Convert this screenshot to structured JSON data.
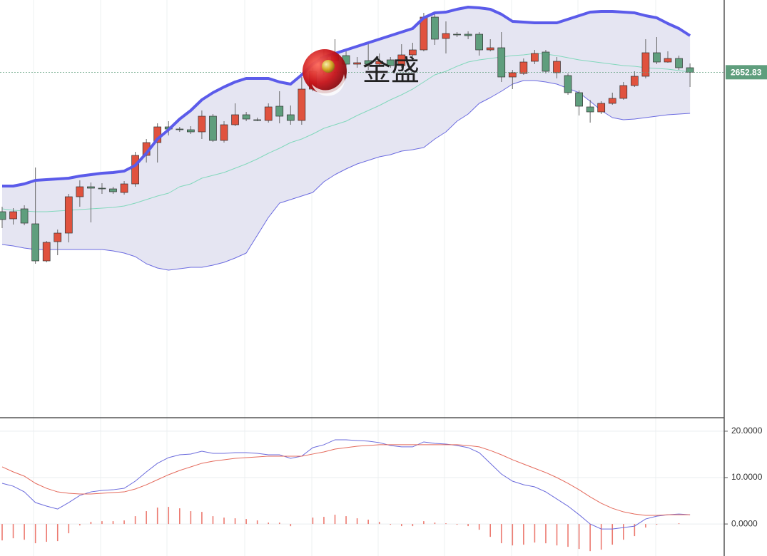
{
  "chart_data": [
    {
      "type": "candlestick",
      "ylim": [
        2411,
        2703.5
      ],
      "open": [
        2555,
        2550,
        2557,
        2546.5,
        2520.5,
        2534,
        2540,
        2565.5,
        2572.5,
        2571.5,
        2571,
        2568.5,
        2574.5,
        2594.5,
        2603.5,
        2614.5,
        2613,
        2612.5,
        2611,
        2622,
        2605,
        2616,
        2623,
        2619.5,
        2619,
        2629,
        2623,
        2619,
        2641,
        2663.5,
        2661,
        2664.5,
        2658.5,
        2661,
        2658.5,
        2661.5,
        2657.5,
        2665,
        2668.5,
        2691.5,
        2676.5,
        2679.5,
        2679.5,
        2679.5,
        2668.5,
        2670,
        2649.5,
        2652,
        2660.5,
        2667,
        2652.5,
        2650.5,
        2638.5,
        2628.5,
        2625,
        2631,
        2634.5,
        2643.5,
        2650,
        2666.5,
        2660,
        2662.5,
        2656
      ],
      "high": [
        2558.5,
        2557.5,
        2559.5,
        2586,
        2534.5,
        2542.5,
        2567.5,
        2577,
        2575.5,
        2575,
        2572.5,
        2576.5,
        2597,
        2606,
        2617,
        2618.5,
        2614.5,
        2615,
        2626,
        2623.5,
        2618.5,
        2631,
        2625,
        2621,
        2631,
        2639.5,
        2629.5,
        2649.5,
        2656,
        2668.5,
        2676,
        2667.5,
        2663.5,
        2673.5,
        2666,
        2663.5,
        2672.5,
        2673.5,
        2694.5,
        2694.5,
        2688.5,
        2681,
        2681.5,
        2681,
        2676,
        2681,
        2654.5,
        2662.5,
        2668.5,
        2668.5,
        2663.5,
        2652,
        2640,
        2633.5,
        2632.5,
        2638.5,
        2646,
        2653.5,
        2676,
        2677.5,
        2667.5,
        2664.5,
        2659
      ],
      "low": [
        2543.5,
        2546,
        2545.5,
        2518.5,
        2519.5,
        2524.5,
        2533.5,
        2558.5,
        2547.5,
        2567.5,
        2567.5,
        2567,
        2572.5,
        2589.5,
        2589.5,
        2608.5,
        2611,
        2609.5,
        2606,
        2604,
        2603.5,
        2615,
        2618.5,
        2618.5,
        2617.5,
        2617,
        2616,
        2616,
        2639.5,
        2651,
        2658.5,
        2648.5,
        2656,
        2654.5,
        2657.5,
        2656,
        2656,
        2663.5,
        2667.5,
        2672,
        2666,
        2677.5,
        2676,
        2664.5,
        2667.5,
        2646,
        2641,
        2651,
        2658.5,
        2652,
        2648.5,
        2637,
        2622.5,
        2617.5,
        2623.5,
        2630,
        2633.5,
        2642.5,
        2648.5,
        2658.5,
        2659.5,
        2654.5,
        2642.5
      ],
      "close": [
        2549.5,
        2555,
        2547,
        2520.5,
        2533.5,
        2540,
        2565.5,
        2572.5,
        2571.5,
        2571,
        2569,
        2574.5,
        2594.5,
        2603.5,
        2614.5,
        2613,
        2612.5,
        2611,
        2622,
        2605,
        2616,
        2623,
        2620,
        2619,
        2628.5,
        2622,
        2619,
        2641,
        2653.5,
        2653.5,
        2665,
        2658.5,
        2659.5,
        2658.5,
        2660.5,
        2657.5,
        2665,
        2668.5,
        2691.5,
        2676,
        2680,
        2679,
        2678.5,
        2668.5,
        2670,
        2649.5,
        2652.5,
        2660,
        2666,
        2653.5,
        2660.5,
        2638.5,
        2629,
        2625,
        2631,
        2634.5,
        2643.5,
        2650,
        2666.5,
        2660,
        2662.5,
        2656,
        2652.83
      ],
      "up_color": "#e0523e",
      "down_color": "#5f9e7d",
      "upper": {
        "color": "#5b5bea",
        "values": [
          2573,
          2573,
          2574.5,
          2577,
          2577.5,
          2578,
          2578.5,
          2580,
          2581,
          2582,
          2582.5,
          2583.5,
          2587.5,
          2596,
          2606,
          2612.5,
          2620,
          2626,
          2633.5,
          2638.5,
          2642.5,
          2646,
          2648.5,
          2648.5,
          2648.5,
          2646,
          2644.5,
          2651,
          2658.5,
          2663.5,
          2666,
          2668.5,
          2671,
          2673.5,
          2676,
          2678.5,
          2681,
          2683.5,
          2691,
          2694.5,
          2695,
          2697,
          2698.5,
          2698,
          2697,
          2693.5,
          2688.5,
          2688,
          2687.5,
          2687.5,
          2687.5,
          2690,
          2692.5,
          2695,
          2695.5,
          2695.5,
          2695,
          2694.5,
          2692.5,
          2691,
          2687,
          2683.5,
          2678.5
        ]
      },
      "middle": {
        "color": "#82d8bc",
        "values": [
          2557,
          2556,
          2555.5,
          2555,
          2555,
          2555.5,
          2556,
          2556.5,
          2557,
          2557.5,
          2558,
          2559,
          2561,
          2563.5,
          2566,
          2568,
          2572.5,
          2574.5,
          2578.5,
          2580.5,
          2582.5,
          2585.5,
          2588.5,
          2592,
          2596,
          2599.5,
          2603.5,
          2606,
          2609.5,
          2613.5,
          2616,
          2618.5,
          2622.5,
          2626,
          2629.5,
          2633.5,
          2637,
          2641,
          2646,
          2651,
          2653.5,
          2657,
          2660,
          2661.5,
          2662.5,
          2663.5,
          2664.5,
          2665,
          2666,
          2665.5,
          2664.5,
          2663,
          2661.5,
          2660.5,
          2659.5,
          2658.5,
          2657.5,
          2657,
          2656,
          2655.5,
          2655,
          2654,
          2653
        ]
      },
      "lower": {
        "color": "#6b6be0",
        "values": [
          2532,
          2531,
          2529.5,
          2528.5,
          2528.5,
          2528.5,
          2528.5,
          2528.5,
          2528.5,
          2528.5,
          2527.5,
          2526,
          2523.5,
          2518.5,
          2515.5,
          2514,
          2515,
          2516,
          2516,
          2517.5,
          2519.5,
          2522.5,
          2526,
          2538.5,
          2551,
          2561,
          2563.5,
          2566,
          2568.5,
          2576,
          2581,
          2585,
          2588.5,
          2591,
          2593.5,
          2595,
          2597.5,
          2598.5,
          2600,
          2606,
          2611,
          2618.5,
          2623.5,
          2631,
          2635,
          2639.5,
          2644.5,
          2647,
          2647,
          2646,
          2644.5,
          2641.5,
          2638.5,
          2632.5,
          2626,
          2621,
          2619.5,
          2620,
          2621,
          2622,
          2623,
          2623.5,
          2624
        ]
      },
      "band_fill": "#e5e5f2",
      "last_price": 2652.83,
      "last_price_color": "#5f9e7d",
      "watermark": "金盛"
    },
    {
      "type": "macd",
      "ylim": [
        -6.9,
        22.6
      ],
      "yticks": [
        {
          "value": 20,
          "label": "20.0000"
        },
        {
          "value": 10,
          "label": "10.0000"
        },
        {
          "value": 0,
          "label": "0.0000"
        }
      ],
      "grid": true,
      "series": [
        {
          "color": "#6b6bdc",
          "values": [
            8.77,
            8.15,
            6.92,
            4.62,
            3.85,
            3.23,
            4.62,
            6.15,
            6.92,
            7.23,
            7.38,
            7.69,
            9.23,
            11.23,
            13.08,
            14.31,
            14.92,
            15.08,
            15.69,
            15.23,
            15.23,
            15.38,
            15.38,
            15.23,
            14.92,
            14.92,
            14.15,
            14.62,
            16.46,
            17.08,
            18.15,
            18.15,
            18.0,
            17.85,
            17.54,
            16.92,
            16.62,
            16.62,
            17.69,
            17.38,
            17.23,
            16.92,
            16.46,
            15.38,
            13.08,
            10.77,
            9.23,
            8.46,
            8.0,
            6.92,
            5.38,
            3.85,
            2.0,
            0,
            -1.08,
            -1.08,
            -0.77,
            -0.46,
            1.08,
            1.69,
            2.0,
            2.15,
            2.0
          ]
        },
        {
          "color": "#e46a5c",
          "values": [
            12.31,
            11.23,
            10.31,
            8.77,
            7.69,
            6.92,
            6.62,
            6.46,
            6.46,
            6.62,
            6.77,
            6.92,
            7.54,
            8.46,
            9.54,
            10.62,
            11.54,
            12.31,
            13.08,
            13.54,
            13.85,
            14.15,
            14.31,
            14.46,
            14.62,
            14.62,
            14.62,
            14.62,
            15.08,
            15.54,
            16.15,
            16.46,
            16.77,
            16.92,
            17.08,
            17.08,
            17.08,
            17.08,
            17.08,
            17.08,
            17.08,
            17.08,
            16.92,
            16.62,
            15.85,
            14.92,
            13.85,
            12.92,
            12.0,
            11.08,
            10.0,
            8.77,
            7.38,
            5.85,
            4.46,
            3.38,
            2.62,
            2.15,
            1.85,
            1.85,
            2.0,
            2.0,
            2.0
          ]
        }
      ],
      "histogram": {
        "color": "#ec7a70",
        "values": [
          -3.54,
          -3.08,
          -3.39,
          -4.15,
          -3.84,
          -3.69,
          -2.0,
          -0.31,
          0.46,
          0.61,
          0.61,
          0.77,
          1.69,
          2.77,
          3.54,
          3.69,
          3.38,
          2.77,
          2.61,
          1.69,
          1.38,
          1.23,
          1.07,
          0.77,
          0.3,
          0.3,
          -0.47,
          0,
          1.38,
          1.54,
          2.0,
          1.69,
          1.23,
          0.93,
          0.46,
          -0.16,
          -0.46,
          -0.46,
          0.61,
          0.3,
          0.15,
          -0.16,
          -0.46,
          -1.24,
          -2.77,
          -4.15,
          -4.62,
          -4.46,
          -4.0,
          -4.16,
          -4.62,
          -4.92,
          -5.38,
          -5.85,
          -5.54,
          -4.46,
          -3.39,
          -2.61,
          -0.77,
          -0.16,
          0,
          0.15,
          0
        ]
      }
    }
  ]
}
